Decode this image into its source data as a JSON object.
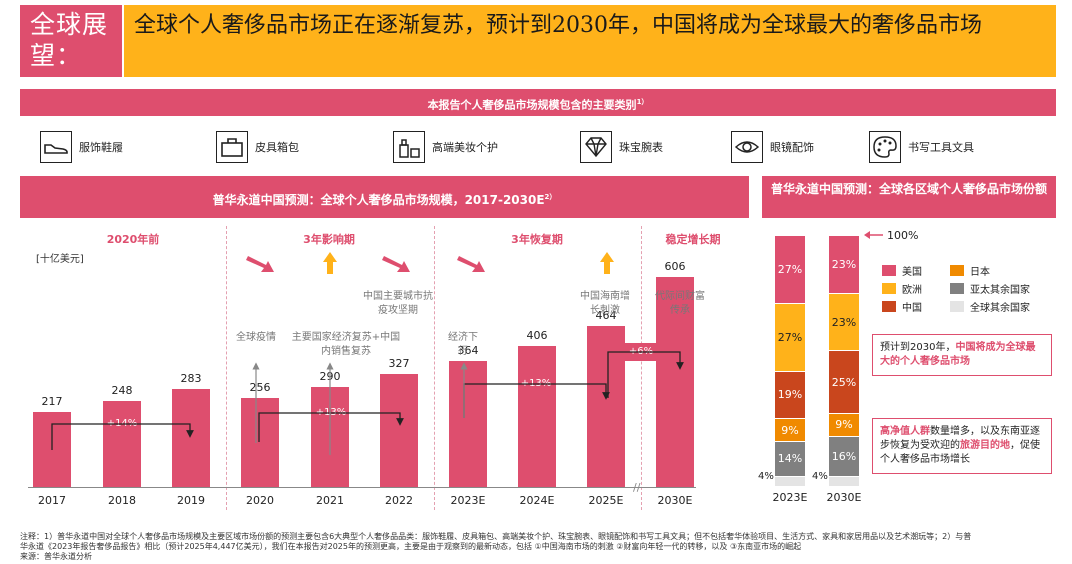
{
  "header": {
    "section_label": "全球展望：",
    "title": "全球个人奢侈品市场正在逐渐复苏，预计到2030年，中国将成为全球最大的奢侈品市场"
  },
  "categories_band": {
    "title": "本报告个人奢侈品市场规模包含的主要类别",
    "sup": "1）"
  },
  "categories": [
    {
      "label": "服饰鞋履",
      "icon": "shoe-icon"
    },
    {
      "label": "皮具箱包",
      "icon": "bag-icon"
    },
    {
      "label": "高端美妆个护",
      "icon": "cosmetics-icon"
    },
    {
      "label": "珠宝腕表",
      "icon": "diamond-icon"
    },
    {
      "label": "眼镜配饰",
      "icon": "eye-icon"
    },
    {
      "label": "书写工具文具",
      "icon": "palette-icon"
    }
  ],
  "chart_data": [
    {
      "type": "bar",
      "title": "普华永道中国预测：全球个人奢侈品市场规模，2017-2030E",
      "title_sup": "2）",
      "ylabel": "[十亿美元]",
      "categories": [
        "2017",
        "2018",
        "2019",
        "2020",
        "2021",
        "2022",
        "2023E",
        "2024E",
        "2025E",
        "2030E"
      ],
      "values": [
        217,
        248,
        283,
        256,
        290,
        327,
        364,
        406,
        464,
        606
      ],
      "ylim": [
        0,
        650
      ],
      "phases": [
        "2020年前",
        "3年影响期",
        "3年恢复期",
        "稳定增长期"
      ],
      "growth_labels": [
        "+14%",
        "+13%",
        "+13%",
        "+6%"
      ],
      "annotations": [
        "全球疫情",
        "主要国家经济复苏+中国内销售复苏",
        "中国主要城市抗疫攻坚期",
        "经济下行",
        "中国海南增长刺激",
        "代际间财富传承"
      ]
    },
    {
      "type": "bar",
      "stacked": true,
      "title": "普华永道中国预测：全球各区域个人奢侈品市场份额",
      "categories": [
        "2023E",
        "2030E"
      ],
      "top_label": "100%",
      "series": [
        {
          "name": "全球其余国家",
          "values": [
            4,
            4
          ],
          "color": "#e4e4e4"
        },
        {
          "name": "亚太其余国家",
          "values": [
            14,
            16
          ],
          "color": "#808080"
        },
        {
          "name": "日本",
          "values": [
            9,
            9
          ],
          "color": "#f08a00"
        },
        {
          "name": "中国",
          "values": [
            19,
            25
          ],
          "color": "#c9461d"
        },
        {
          "name": "欧洲",
          "values": [
            27,
            23
          ],
          "color": "#ffb21a"
        },
        {
          "name": "美国",
          "values": [
            27,
            23
          ],
          "color": "#de4e6e"
        }
      ],
      "legend": [
        "美国",
        "日本",
        "欧洲",
        "亚太其余国家",
        "中国",
        "全球其余国家"
      ],
      "note1": {
        "a": "预计到2030年，",
        "b": "中国将成为全球最大的个人奢侈品市场"
      },
      "note2": {
        "a": "高净值人群",
        "b": "数量增多，以及东南亚逐步恢复为受欢迎的",
        "c": "旅游目的地",
        "d": "，促使个人奢侈品市场增长"
      }
    }
  ],
  "footnote": {
    "line1": "注释：1）普华永道中国对全球个人奢侈品市场规模及主要区域市场份额的预测主要包含6大典型个人奢侈品品类：服饰鞋履、皮具箱包、高端美妆个护、珠宝腕表、眼镜配饰和书写工具文具；但不包括奢华体验项目、生活方式、家具和家居用品以及艺术潮玩等；2）与普",
    "line2": "华永道《2023年报告奢侈品报告》相比（预计2025年4,447亿美元），我们在本报告对2025年的预测更高，主要是由于观察到的最新动态，包括 ①中国海南市场的刺激 ②财富向年轻一代的转移，以及 ③东南亚市场的崛起",
    "source": "来源：普华永道分析"
  }
}
